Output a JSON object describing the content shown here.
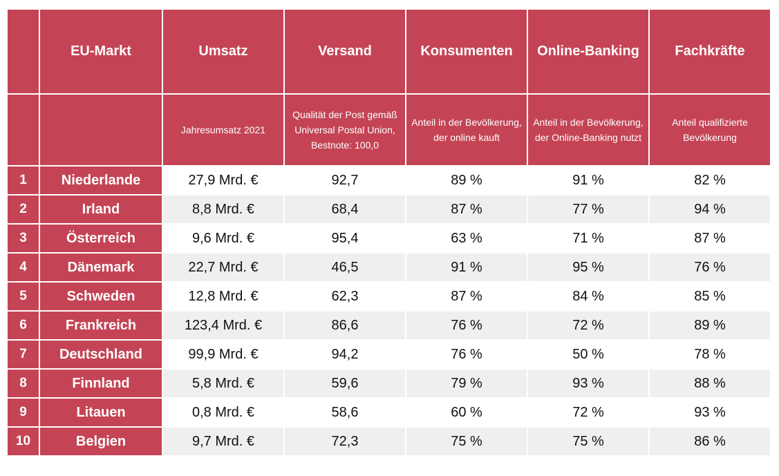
{
  "header": {
    "rank": "",
    "market": "EU-Markt",
    "revenue": "Umsatz",
    "shipping": "Versand",
    "consumers": "Konsumenten",
    "banking": "Online-Banking",
    "skilled": "Fachkräfte"
  },
  "subheader": {
    "rank": "",
    "market": "",
    "revenue": "Jahresumsatz 2021",
    "shipping": "Qualität der Post gemäß Universal Postal Union, Bestnote: 100,0",
    "consumers": "Anteil in der Bevölkerung, der online kauft",
    "banking": "Anteil in der Bevölkerung, der Online-Banking nutzt",
    "skilled": "Anteil qualifizierte Bevölkerung"
  },
  "rows": [
    {
      "rank": "1",
      "country": "Niederlande",
      "revenue": "27,9 Mrd. €",
      "shipping": "92,7",
      "consumers": "89 %",
      "banking": "91 %",
      "skilled": "82 %"
    },
    {
      "rank": "2",
      "country": "Irland",
      "revenue": "8,8 Mrd. €",
      "shipping": "68,4",
      "consumers": "87 %",
      "banking": "77 %",
      "skilled": "94 %"
    },
    {
      "rank": "3",
      "country": "Österreich",
      "revenue": "9,6 Mrd. €",
      "shipping": "95,4",
      "consumers": "63 %",
      "banking": "71 %",
      "skilled": "87 %"
    },
    {
      "rank": "4",
      "country": "Dänemark",
      "revenue": "22,7 Mrd. €",
      "shipping": "46,5",
      "consumers": "91 %",
      "banking": "95 %",
      "skilled": "76 %"
    },
    {
      "rank": "5",
      "country": "Schweden",
      "revenue": "12,8 Mrd. €",
      "shipping": "62,3",
      "consumers": "87 %",
      "banking": "84 %",
      "skilled": "85 %"
    },
    {
      "rank": "6",
      "country": "Frankreich",
      "revenue": "123,4 Mrd. €",
      "shipping": "86,6",
      "consumers": "76 %",
      "banking": "72 %",
      "skilled": "89 %"
    },
    {
      "rank": "7",
      "country": "Deutschland",
      "revenue": "99,9 Mrd. €",
      "shipping": "94,2",
      "consumers": "76 %",
      "banking": "50 %",
      "skilled": "78 %"
    },
    {
      "rank": "8",
      "country": "Finnland",
      "revenue": "5,8 Mrd. €",
      "shipping": "59,6",
      "consumers": "79 %",
      "banking": "93 %",
      "skilled": "88 %"
    },
    {
      "rank": "9",
      "country": "Litauen",
      "revenue": "0,8 Mrd. €",
      "shipping": "58,6",
      "consumers": "60 %",
      "banking": "72 %",
      "skilled": "93 %"
    },
    {
      "rank": "10",
      "country": "Belgien",
      "revenue": "9,7 Mrd. €",
      "shipping": "72,3",
      "consumers": "75 %",
      "banking": "75 %",
      "skilled": "86 %"
    }
  ],
  "colors": {
    "header_bg": "#c44455",
    "header_text": "#ffffff",
    "row_alt_bg": "#efefef"
  }
}
